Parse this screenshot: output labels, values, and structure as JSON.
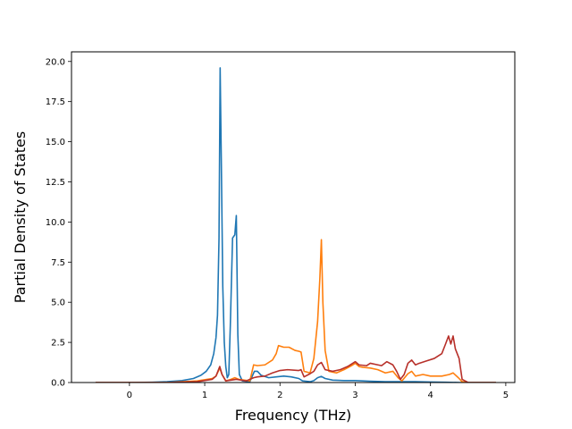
{
  "chart_data": {
    "type": "line",
    "title": "",
    "xlabel": "Frequency (THz)",
    "ylabel": "Partial Density of States",
    "xlim": [
      -0.77,
      5.12
    ],
    "ylim": [
      0,
      20.6
    ],
    "xticks": [
      0,
      1,
      2,
      3,
      4,
      5
    ],
    "xtick_labels": [
      "0",
      "1",
      "2",
      "3",
      "4",
      "5"
    ],
    "yticks": [
      0,
      2.5,
      5,
      7.5,
      10,
      12.5,
      15,
      17.5,
      20
    ],
    "ytick_labels": [
      "0.0",
      "2.5",
      "5.0",
      "7.5",
      "10.0",
      "12.5",
      "15.0",
      "17.5",
      "20.0"
    ],
    "grid": false,
    "legend": "none",
    "series": [
      {
        "color": "#1f77b4",
        "points": [
          [
            -0.45,
            0
          ],
          [
            0,
            0
          ],
          [
            0.3,
            0.02
          ],
          [
            0.5,
            0.05
          ],
          [
            0.7,
            0.12
          ],
          [
            0.85,
            0.25
          ],
          [
            0.95,
            0.45
          ],
          [
            1.02,
            0.7
          ],
          [
            1.08,
            1.1
          ],
          [
            1.12,
            1.8
          ],
          [
            1.15,
            2.8
          ],
          [
            1.17,
            4.2
          ],
          [
            1.19,
            9.0
          ],
          [
            1.205,
            19.6
          ],
          [
            1.22,
            14.0
          ],
          [
            1.24,
            6.0
          ],
          [
            1.26,
            2.5
          ],
          [
            1.28,
            1.0
          ],
          [
            1.3,
            0.3
          ],
          [
            1.32,
            0.5
          ],
          [
            1.34,
            3.5
          ],
          [
            1.37,
            9.0
          ],
          [
            1.4,
            9.2
          ],
          [
            1.42,
            10.4
          ],
          [
            1.44,
            3.0
          ],
          [
            1.46,
            0.5
          ],
          [
            1.5,
            0.1
          ],
          [
            1.6,
            0.05
          ],
          [
            1.66,
            0.7
          ],
          [
            1.7,
            0.7
          ],
          [
            1.75,
            0.45
          ],
          [
            1.85,
            0.3
          ],
          [
            1.95,
            0.35
          ],
          [
            2.05,
            0.4
          ],
          [
            2.15,
            0.35
          ],
          [
            2.25,
            0.25
          ],
          [
            2.3,
            0.1
          ],
          [
            2.4,
            0.05
          ],
          [
            2.45,
            0.12
          ],
          [
            2.5,
            0.3
          ],
          [
            2.55,
            0.38
          ],
          [
            2.6,
            0.25
          ],
          [
            2.7,
            0.15
          ],
          [
            2.85,
            0.12
          ],
          [
            3.0,
            0.12
          ],
          [
            3.2,
            0.08
          ],
          [
            3.4,
            0.05
          ],
          [
            3.6,
            0.05
          ],
          [
            3.8,
            0.05
          ],
          [
            4.0,
            0.03
          ],
          [
            4.2,
            0.02
          ],
          [
            4.4,
            0
          ],
          [
            4.87,
            0
          ]
        ]
      },
      {
        "color": "#ff7f0e",
        "points": [
          [
            -0.45,
            0
          ],
          [
            0.5,
            0
          ],
          [
            0.9,
            0.1
          ],
          [
            1.1,
            0.25
          ],
          [
            1.15,
            0.4
          ],
          [
            1.2,
            0.9
          ],
          [
            1.23,
            0.5
          ],
          [
            1.28,
            0.1
          ],
          [
            1.35,
            0.2
          ],
          [
            1.4,
            0.3
          ],
          [
            1.45,
            0.2
          ],
          [
            1.6,
            0.1
          ],
          [
            1.65,
            1.1
          ],
          [
            1.7,
            1.05
          ],
          [
            1.8,
            1.1
          ],
          [
            1.9,
            1.4
          ],
          [
            1.95,
            1.8
          ],
          [
            1.98,
            2.3
          ],
          [
            2.05,
            2.2
          ],
          [
            2.12,
            2.2
          ],
          [
            2.2,
            2.0
          ],
          [
            2.25,
            1.95
          ],
          [
            2.28,
            1.9
          ],
          [
            2.32,
            0.7
          ],
          [
            2.4,
            0.6
          ],
          [
            2.45,
            1.5
          ],
          [
            2.5,
            3.8
          ],
          [
            2.53,
            6.5
          ],
          [
            2.55,
            8.9
          ],
          [
            2.57,
            5.0
          ],
          [
            2.6,
            2.0
          ],
          [
            2.65,
            0.7
          ],
          [
            2.75,
            0.6
          ],
          [
            2.85,
            0.8
          ],
          [
            2.95,
            1.05
          ],
          [
            3.0,
            1.2
          ],
          [
            3.05,
            1.0
          ],
          [
            3.1,
            0.95
          ],
          [
            3.2,
            0.9
          ],
          [
            3.3,
            0.8
          ],
          [
            3.4,
            0.6
          ],
          [
            3.5,
            0.7
          ],
          [
            3.57,
            0.3
          ],
          [
            3.62,
            0.1
          ],
          [
            3.7,
            0.55
          ],
          [
            3.75,
            0.7
          ],
          [
            3.8,
            0.4
          ],
          [
            3.9,
            0.5
          ],
          [
            4.0,
            0.4
          ],
          [
            4.15,
            0.4
          ],
          [
            4.25,
            0.5
          ],
          [
            4.3,
            0.6
          ],
          [
            4.37,
            0.3
          ],
          [
            4.42,
            0.05
          ],
          [
            4.5,
            0
          ],
          [
            4.87,
            0
          ]
        ]
      },
      {
        "color": "#b7302a",
        "points": [
          [
            -0.45,
            0
          ],
          [
            0.5,
            0
          ],
          [
            0.9,
            0.05
          ],
          [
            1.1,
            0.2
          ],
          [
            1.15,
            0.4
          ],
          [
            1.2,
            1.0
          ],
          [
            1.23,
            0.5
          ],
          [
            1.28,
            0.1
          ],
          [
            1.35,
            0.15
          ],
          [
            1.42,
            0.2
          ],
          [
            1.55,
            0.1
          ],
          [
            1.65,
            0.3
          ],
          [
            1.7,
            0.35
          ],
          [
            1.8,
            0.4
          ],
          [
            1.9,
            0.6
          ],
          [
            2.0,
            0.75
          ],
          [
            2.1,
            0.8
          ],
          [
            2.25,
            0.75
          ],
          [
            2.28,
            0.8
          ],
          [
            2.32,
            0.35
          ],
          [
            2.4,
            0.55
          ],
          [
            2.45,
            0.7
          ],
          [
            2.5,
            1.1
          ],
          [
            2.55,
            1.25
          ],
          [
            2.6,
            0.8
          ],
          [
            2.7,
            0.7
          ],
          [
            2.8,
            0.8
          ],
          [
            2.9,
            1.0
          ],
          [
            3.0,
            1.3
          ],
          [
            3.05,
            1.1
          ],
          [
            3.15,
            1.05
          ],
          [
            3.2,
            1.2
          ],
          [
            3.3,
            1.1
          ],
          [
            3.35,
            1.05
          ],
          [
            3.42,
            1.3
          ],
          [
            3.5,
            1.1
          ],
          [
            3.55,
            0.7
          ],
          [
            3.6,
            0.2
          ],
          [
            3.65,
            0.5
          ],
          [
            3.7,
            1.2
          ],
          [
            3.75,
            1.4
          ],
          [
            3.8,
            1.1
          ],
          [
            3.85,
            1.2
          ],
          [
            3.95,
            1.35
          ],
          [
            4.05,
            1.5
          ],
          [
            4.15,
            1.8
          ],
          [
            4.2,
            2.4
          ],
          [
            4.24,
            2.9
          ],
          [
            4.27,
            2.4
          ],
          [
            4.3,
            2.9
          ],
          [
            4.33,
            2.1
          ],
          [
            4.38,
            1.5
          ],
          [
            4.42,
            0.2
          ],
          [
            4.5,
            0
          ],
          [
            4.87,
            0
          ]
        ]
      }
    ]
  }
}
